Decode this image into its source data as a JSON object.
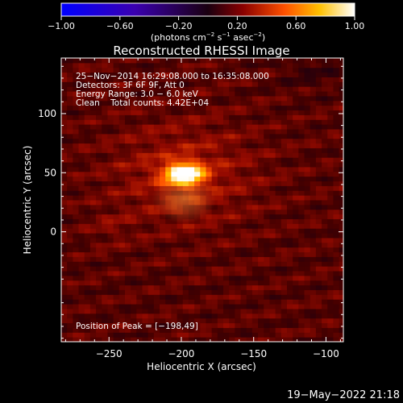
{
  "colorbar": {
    "ticks": [
      {
        "value": -1.0,
        "label": "−1.00"
      },
      {
        "value": -0.6,
        "label": "−0.60"
      },
      {
        "value": -0.2,
        "label": "−0.20"
      },
      {
        "value": 0.2,
        "label": "0.20"
      },
      {
        "value": 0.6,
        "label": "0.60"
      },
      {
        "value": 1.0,
        "label": "1.00"
      }
    ],
    "units": {
      "p1": "(photons cm",
      "e1": "−2",
      "p2": " s",
      "e2": "−1",
      "p3": " asec",
      "e3": "−2",
      "p4": ")"
    }
  },
  "annotations": {
    "line1": "25−Nov−2014 16:29:08.000 to 16:35:08.000",
    "line2": "Detectors: 3F 6F 9F, Att 0",
    "line3": "Energy Range: 3.0 − 6.0 keV",
    "line4": "Clean    Total counts: 4.42E+04",
    "peak": "Position of Peak = [−198,49]"
  },
  "footer_timestamp": "19−May−2022 21:18",
  "chart_data": {
    "type": "heatmap",
    "title": "Reconstructed RHESSI Image",
    "xlabel": "Heliocentric X (arcsec)",
    "ylabel": "Heliocentric Y (arcsec)",
    "xlim": [
      -283,
      -88
    ],
    "ylim": [
      -93,
      147
    ],
    "x_ticks": [
      {
        "value": -250,
        "label": "−250"
      },
      {
        "value": -200,
        "label": "−200"
      },
      {
        "value": -150,
        "label": "−150"
      },
      {
        "value": -100,
        "label": "−100"
      }
    ],
    "y_ticks": [
      {
        "value": 0,
        "label": "0"
      },
      {
        "value": 50,
        "label": "50"
      },
      {
        "value": 100,
        "label": "100"
      }
    ],
    "color_range": [
      -1.0,
      1.0
    ],
    "colormap": "blue-purple-red-yellow-white",
    "peak": {
      "x": -198,
      "y": 49,
      "value": 1.0
    },
    "background_level": 0.18
  }
}
